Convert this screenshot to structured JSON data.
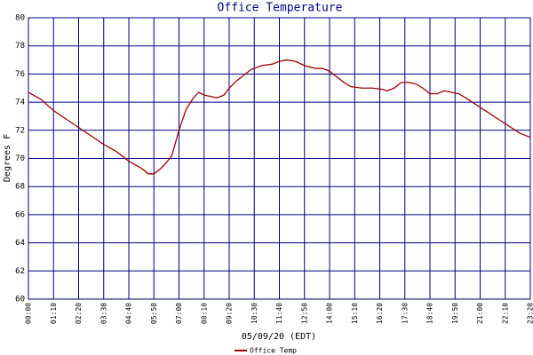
{
  "chart_data": {
    "type": "line",
    "title": "Office Temperature",
    "y_label": "Degrees F",
    "x_label": "05/09/20 (EDT)",
    "x": [
      0,
      35,
      70,
      105,
      140,
      175,
      210,
      245,
      280,
      315,
      335,
      350,
      370,
      385,
      400,
      420,
      440,
      460,
      475,
      490,
      510,
      525,
      545,
      560,
      580,
      600,
      620,
      650,
      680,
      700,
      720,
      745,
      770,
      800,
      820,
      840,
      860,
      880,
      900,
      930,
      960,
      990,
      1000,
      1020,
      1040,
      1060,
      1080,
      1100,
      1120,
      1140,
      1160,
      1180,
      1200,
      1220,
      1250,
      1280,
      1310,
      1340,
      1370,
      1400
    ],
    "series": [
      {
        "name": "Office Temp",
        "color": "#a00000",
        "values": [
          74.7,
          74.2,
          73.4,
          72.8,
          72.2,
          71.6,
          71.0,
          70.5,
          69.8,
          69.3,
          68.9,
          68.9,
          69.3,
          69.7,
          70.2,
          72.0,
          73.5,
          74.3,
          74.7,
          74.5,
          74.4,
          74.3,
          74.5,
          75.0,
          75.5,
          75.9,
          76.3,
          76.6,
          76.7,
          76.9,
          77.0,
          76.9,
          76.6,
          76.4,
          76.4,
          76.2,
          75.8,
          75.4,
          75.1,
          75.0,
          75.0,
          74.9,
          74.8,
          75.0,
          75.4,
          75.4,
          75.3,
          75.0,
          74.6,
          74.6,
          74.8,
          74.7,
          74.6,
          74.3,
          73.8,
          73.3,
          72.8,
          72.3,
          71.8,
          71.5
        ]
      }
    ],
    "xlim": [
      0,
      1400
    ],
    "xticks": [
      {
        "value": 0,
        "label": "00:00"
      },
      {
        "value": 70,
        "label": "01:10"
      },
      {
        "value": 140,
        "label": "02:20"
      },
      {
        "value": 210,
        "label": "03:30"
      },
      {
        "value": 280,
        "label": "04:40"
      },
      {
        "value": 350,
        "label": "05:50"
      },
      {
        "value": 420,
        "label": "07:00"
      },
      {
        "value": 490,
        "label": "08:10"
      },
      {
        "value": 560,
        "label": "09:20"
      },
      {
        "value": 630,
        "label": "10:30"
      },
      {
        "value": 700,
        "label": "11:40"
      },
      {
        "value": 770,
        "label": "12:50"
      },
      {
        "value": 840,
        "label": "14:00"
      },
      {
        "value": 910,
        "label": "15:10"
      },
      {
        "value": 980,
        "label": "16:20"
      },
      {
        "value": 1050,
        "label": "17:30"
      },
      {
        "value": 1120,
        "label": "18:40"
      },
      {
        "value": 1190,
        "label": "19:50"
      },
      {
        "value": 1260,
        "label": "21:00"
      },
      {
        "value": 1330,
        "label": "22:10"
      },
      {
        "value": 1400,
        "label": "23:20"
      }
    ],
    "ylim": [
      60,
      80
    ],
    "yticks": [
      60,
      62,
      64,
      66,
      68,
      70,
      72,
      74,
      76,
      78,
      80
    ],
    "grid": true
  }
}
